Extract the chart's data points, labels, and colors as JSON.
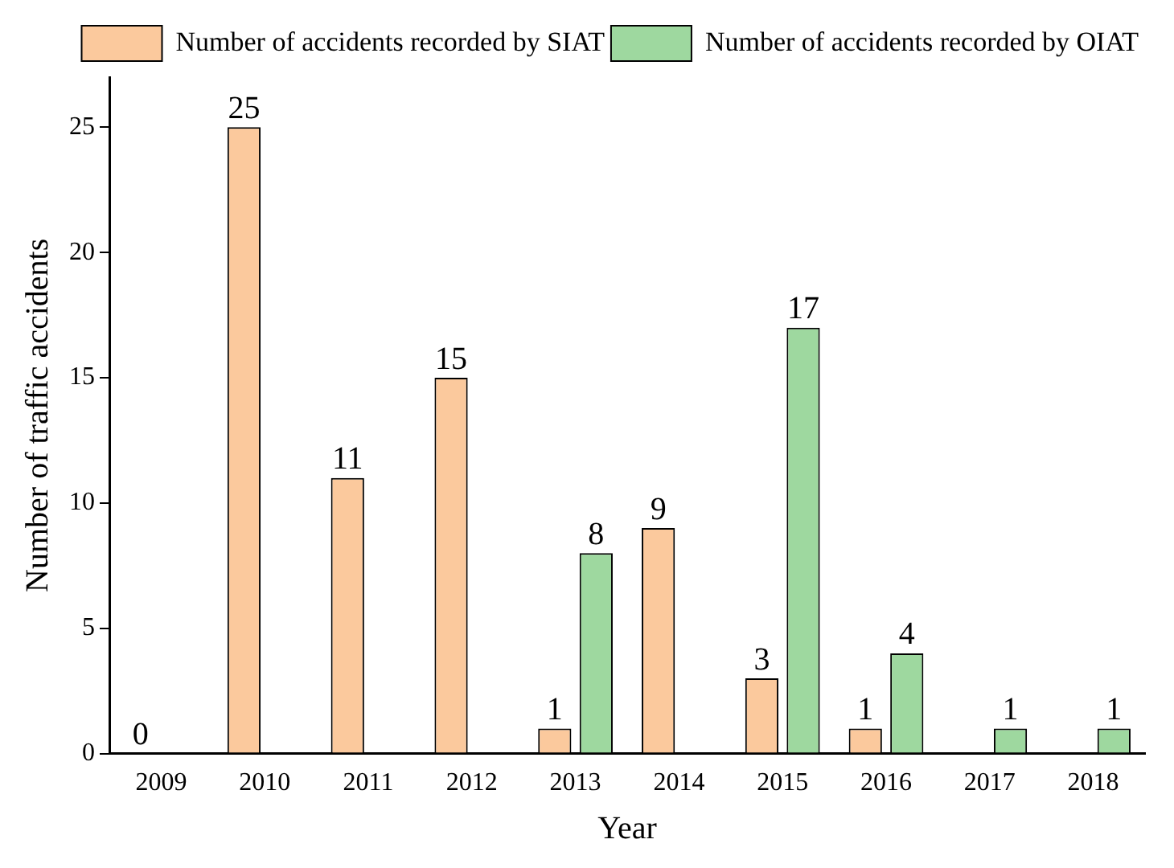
{
  "chart_data": {
    "type": "bar",
    "xlabel": "Year",
    "ylabel": "Number of traffic accidents",
    "categories": [
      "2009",
      "2010",
      "2011",
      "2012",
      "2013",
      "2014",
      "2015",
      "2016",
      "2017",
      "2018"
    ],
    "series": [
      {
        "name": "Number of accidents recorded by SIAT",
        "color": "#fbc99d",
        "values": [
          0,
          25,
          11,
          15,
          1,
          9,
          3,
          1,
          null,
          null
        ]
      },
      {
        "name": "Number of accidents recorded by OIAT",
        "color": "#9ed89f",
        "values": [
          null,
          null,
          null,
          null,
          8,
          null,
          17,
          4,
          1,
          1
        ]
      }
    ],
    "ylim": [
      0,
      27
    ],
    "yticks": [
      0,
      5,
      10,
      15,
      20,
      25
    ],
    "grid": false,
    "legend": "top right",
    "data_labels": true
  }
}
